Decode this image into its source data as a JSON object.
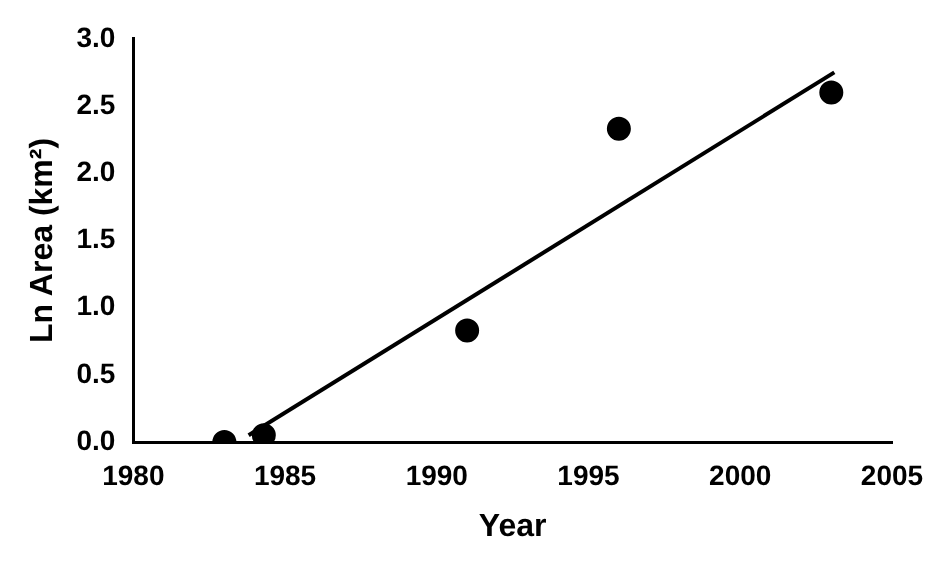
{
  "chart_data": {
    "type": "scatter",
    "xlabel": "Year",
    "ylabel": "Ln Area (km²)",
    "xlim": [
      1980,
      2005
    ],
    "xticks": [
      1980,
      1985,
      1990,
      1995,
      2000,
      2005
    ],
    "ylim": [
      0,
      3
    ],
    "yticks": [
      {
        "value": 0,
        "label": "0.0"
      },
      {
        "value": 0.5,
        "label": "0.5"
      },
      {
        "value": 1,
        "label": "1.0"
      },
      {
        "value": 1.5,
        "label": "1.5"
      },
      {
        "value": 2,
        "label": "2.0"
      },
      {
        "value": 2.5,
        "label": "2.5"
      },
      {
        "value": 3,
        "label": "3.0"
      }
    ],
    "grid": false,
    "legend": false,
    "marker": "circle",
    "series": [
      {
        "type": "scatter",
        "color": "#000000",
        "x": [
          1983,
          1984.3,
          1991,
          1996,
          2003
        ],
        "values": [
          0,
          0.05,
          0.83,
          2.33,
          2.6
        ]
      },
      {
        "type": "line",
        "color": "#000000",
        "marker": "none",
        "x": [
          1983.8,
          2003.1
        ],
        "values": [
          0.05,
          2.75
        ]
      }
    ]
  }
}
